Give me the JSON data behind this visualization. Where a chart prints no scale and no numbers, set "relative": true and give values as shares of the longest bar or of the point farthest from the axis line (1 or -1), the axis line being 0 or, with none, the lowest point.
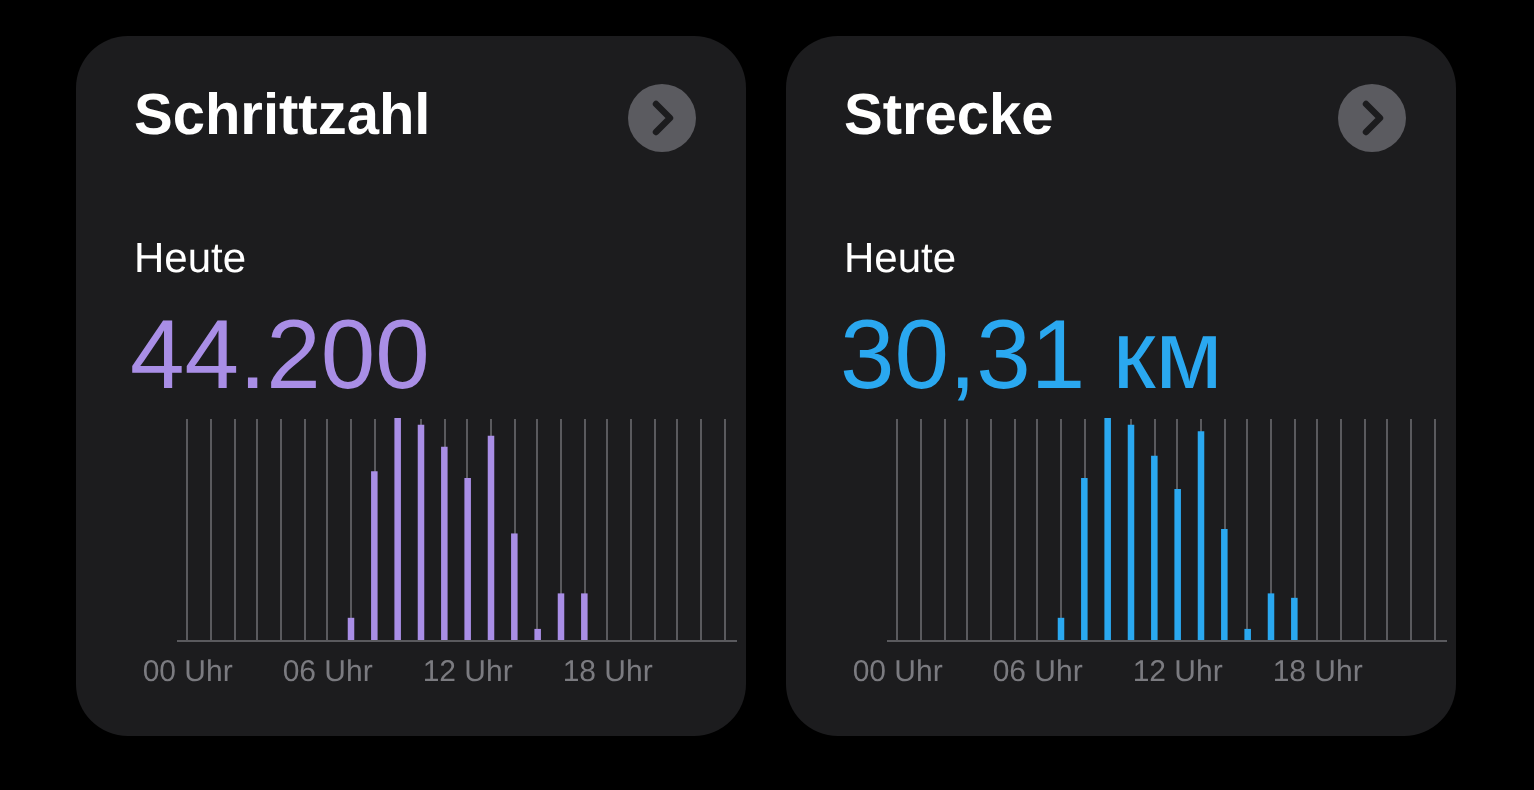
{
  "chart_data": [
    {
      "type": "bar",
      "title": "Schrittzahl",
      "subtitle": "Heute",
      "annotations": [
        "44.200"
      ],
      "relative": true,
      "grid": "x",
      "categories": [
        "00 Uhr",
        null,
        null,
        null,
        null,
        null,
        "06 Uhr",
        null,
        null,
        null,
        null,
        null,
        "12 Uhr",
        null,
        null,
        null,
        null,
        null,
        "18 Uhr",
        null,
        null,
        null,
        null,
        null
      ],
      "series": [
        {
          "color": "#a98ee6",
          "values": [
            null,
            null,
            null,
            null,
            null,
            null,
            null,
            0.1,
            0.76,
            1,
            0.97,
            0.87,
            0.73,
            0.92,
            0.48,
            0.05,
            0.21,
            0.21,
            null,
            null,
            null,
            null,
            null,
            null
          ]
        }
      ]
    },
    {
      "type": "bar",
      "title": "Strecke",
      "subtitle": "Heute",
      "annotations": [
        "30,31 км"
      ],
      "relative": true,
      "grid": "x",
      "categories": [
        "00 Uhr",
        null,
        null,
        null,
        null,
        null,
        "06 Uhr",
        null,
        null,
        null,
        null,
        null,
        "12 Uhr",
        null,
        null,
        null,
        null,
        null,
        "18 Uhr",
        null,
        null,
        null,
        null,
        null
      ],
      "series": [
        {
          "color": "#2aa8f0",
          "values": [
            null,
            null,
            null,
            null,
            null,
            null,
            null,
            0.1,
            0.73,
            1,
            0.97,
            0.83,
            0.68,
            0.94,
            0.5,
            0.05,
            0.21,
            0.19,
            null,
            null,
            null,
            null,
            null,
            null
          ]
        }
      ]
    }
  ]
}
